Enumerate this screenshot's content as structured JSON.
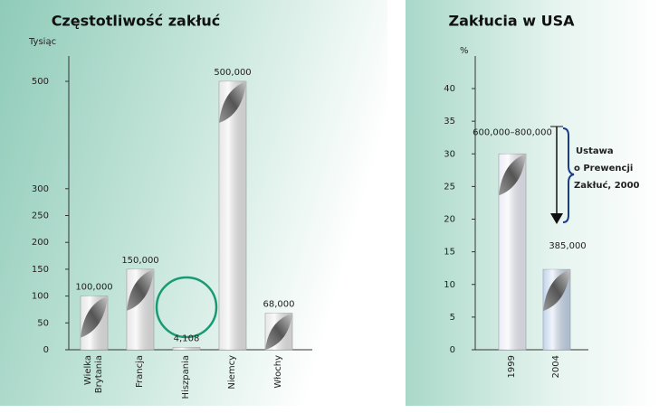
{
  "chart_data": [
    {
      "type": "bar",
      "title": "Częstotliwość zakłuć",
      "ylabel": "Tysiąc",
      "categories": [
        "Wielka\nBrytania",
        "Francja",
        "Hiszpania",
        "Niemcy",
        "Włochy"
      ],
      "values": [
        100,
        150,
        4.108,
        500,
        68
      ],
      "value_labels": [
        "100,000",
        "150,000",
        "4,108",
        "500,000",
        "68,000"
      ],
      "color": "#e4e4e6",
      "ylim": [
        0,
        500
      ],
      "yticks": [
        0,
        50,
        100,
        150,
        200,
        250,
        300,
        500
      ],
      "grid": false
    },
    {
      "type": "bar",
      "title": "Zakłucia w USA",
      "ylabel": "%",
      "categories": [
        "1999",
        "2004"
      ],
      "values": [
        30,
        12.3
      ],
      "colors": [
        "#e8eaf6",
        "#b9cfea"
      ],
      "bar_annotations": [
        "600,000–800,000",
        "385,000"
      ],
      "note": [
        "Ustawa",
        "o Prewencji",
        "Zakłuć, 2000"
      ],
      "ylim": [
        0,
        40
      ],
      "yticks": [
        0,
        5,
        10,
        15,
        20,
        25,
        30,
        35,
        40
      ],
      "grid": false
    }
  ]
}
